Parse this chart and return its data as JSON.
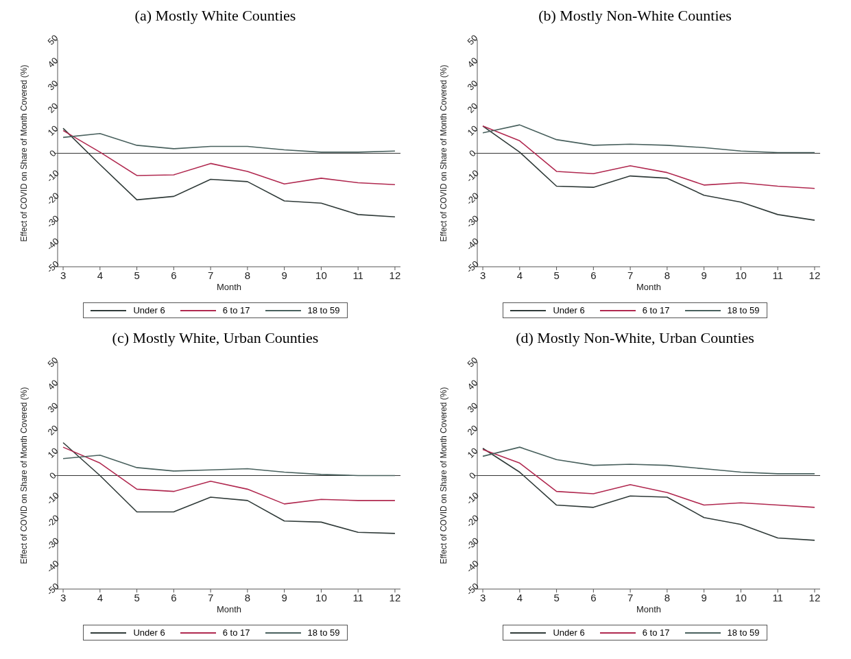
{
  "chart_data": [
    {
      "type": "line",
      "title": "(a) Mostly White Counties",
      "xlabel": "Month",
      "ylabel": "Effect of COVID on Share of Month Covered (%)",
      "x": [
        3,
        4,
        5,
        6,
        7,
        8,
        9,
        10,
        11,
        12
      ],
      "xlim": [
        2.85,
        12.15
      ],
      "xticks": [
        3,
        4,
        5,
        6,
        7,
        8,
        9,
        10,
        11,
        12
      ],
      "ylim": [
        -50,
        50
      ],
      "yticks": [
        -50,
        -40,
        -30,
        -20,
        -10,
        0,
        10,
        20,
        30,
        40,
        50
      ],
      "grid": false,
      "legend": "bottom",
      "marker": "none",
      "line_style": "solid",
      "ref_lines": [
        {
          "axis": "y",
          "value": 0,
          "color": "#333333"
        }
      ],
      "series": [
        {
          "name": "Under 6",
          "color": "#2f3a38",
          "values": [
            11,
            -5,
            -20.5,
            -19,
            -11.5,
            -12.5,
            -21,
            -22,
            -27,
            -28
          ]
        },
        {
          "name": "6 to 17",
          "color": "#b0284f",
          "values": [
            10,
            0.5,
            -9.8,
            -9.5,
            -4.5,
            -8,
            -13.5,
            -11,
            -13,
            -13.8
          ]
        },
        {
          "name": "18 to 59",
          "color": "#48605d",
          "values": [
            7,
            8.7,
            3.5,
            2,
            3,
            3,
            1.5,
            0.5,
            0.5,
            1
          ]
        }
      ]
    },
    {
      "type": "line",
      "title": "(b) Mostly Non-White Counties",
      "xlabel": "Month",
      "ylabel": "Effect of COVID on Share of Month Covered (%)",
      "x": [
        3,
        4,
        5,
        6,
        7,
        8,
        9,
        10,
        11,
        12
      ],
      "xlim": [
        2.85,
        12.15
      ],
      "xticks": [
        3,
        4,
        5,
        6,
        7,
        8,
        9,
        10,
        11,
        12
      ],
      "ylim": [
        -50,
        50
      ],
      "yticks": [
        -50,
        -40,
        -30,
        -20,
        -10,
        0,
        10,
        20,
        30,
        40,
        50
      ],
      "grid": false,
      "legend": "bottom",
      "marker": "none",
      "line_style": "solid",
      "ref_lines": [
        {
          "axis": "y",
          "value": 0,
          "color": "#333333"
        }
      ],
      "series": [
        {
          "name": "Under 6",
          "color": "#2f3a38",
          "values": [
            12,
            0.5,
            -14.5,
            -15,
            -10,
            -11,
            -18.5,
            -21.5,
            -27,
            -29.5
          ]
        },
        {
          "name": "6 to 17",
          "color": "#b0284f",
          "values": [
            12,
            5.5,
            -8,
            -9,
            -5.5,
            -8.5,
            -14,
            -13,
            -14.5,
            -15.5
          ]
        },
        {
          "name": "18 to 59",
          "color": "#48605d",
          "values": [
            9,
            12.5,
            6,
            3.5,
            4,
            3.5,
            2.5,
            1,
            0.3,
            0.3
          ]
        }
      ]
    },
    {
      "type": "line",
      "title": "(c) Mostly White, Urban Counties",
      "xlabel": "Month",
      "ylabel": "Effect of COVID on Share of Month Covered (%)",
      "x": [
        3,
        4,
        5,
        6,
        7,
        8,
        9,
        10,
        11,
        12
      ],
      "xlim": [
        2.85,
        12.15
      ],
      "xticks": [
        3,
        4,
        5,
        6,
        7,
        8,
        9,
        10,
        11,
        12
      ],
      "ylim": [
        -50,
        50
      ],
      "yticks": [
        -50,
        -40,
        -30,
        -20,
        -10,
        0,
        10,
        20,
        30,
        40,
        50
      ],
      "grid": false,
      "legend": "bottom",
      "marker": "none",
      "line_style": "solid",
      "ref_lines": [
        {
          "axis": "y",
          "value": 0,
          "color": "#333333"
        }
      ],
      "series": [
        {
          "name": "Under 6",
          "color": "#2f3a38",
          "values": [
            14.5,
            0,
            -16,
            -16,
            -9.5,
            -11,
            -20,
            -20.5,
            -25,
            -25.5
          ]
        },
        {
          "name": "6 to 17",
          "color": "#b0284f",
          "values": [
            12.5,
            5.5,
            -6,
            -7,
            -2.5,
            -6,
            -12.5,
            -10.5,
            -11,
            -11
          ]
        },
        {
          "name": "18 to 59",
          "color": "#48605d",
          "values": [
            7.5,
            9,
            3.5,
            2,
            2.5,
            3,
            1.5,
            0.5,
            0,
            0
          ]
        }
      ]
    },
    {
      "type": "line",
      "title": "(d) Mostly Non-White, Urban Counties",
      "xlabel": "Month",
      "ylabel": "Effect of COVID on Share of Month Covered (%)",
      "x": [
        3,
        4,
        5,
        6,
        7,
        8,
        9,
        10,
        11,
        12
      ],
      "xlim": [
        2.85,
        12.15
      ],
      "xticks": [
        3,
        4,
        5,
        6,
        7,
        8,
        9,
        10,
        11,
        12
      ],
      "ylim": [
        -50,
        50
      ],
      "yticks": [
        -50,
        -40,
        -30,
        -20,
        -10,
        0,
        10,
        20,
        30,
        40,
        50
      ],
      "grid": false,
      "legend": "bottom",
      "marker": "none",
      "line_style": "solid",
      "ref_lines": [
        {
          "axis": "y",
          "value": 0,
          "color": "#333333"
        }
      ],
      "series": [
        {
          "name": "Under 6",
          "color": "#2f3a38",
          "values": [
            12,
            1.5,
            -13,
            -14,
            -9,
            -9.5,
            -18.5,
            -21.5,
            -27.5,
            -28.5
          ]
        },
        {
          "name": "6 to 17",
          "color": "#b0284f",
          "values": [
            11.5,
            5.5,
            -7,
            -8,
            -4,
            -7.5,
            -13,
            -12,
            -13,
            -14
          ]
        },
        {
          "name": "18 to 59",
          "color": "#48605d",
          "values": [
            8.5,
            12.5,
            7,
            4.5,
            5,
            4.5,
            3,
            1.5,
            0.8,
            0.8
          ]
        }
      ]
    }
  ]
}
